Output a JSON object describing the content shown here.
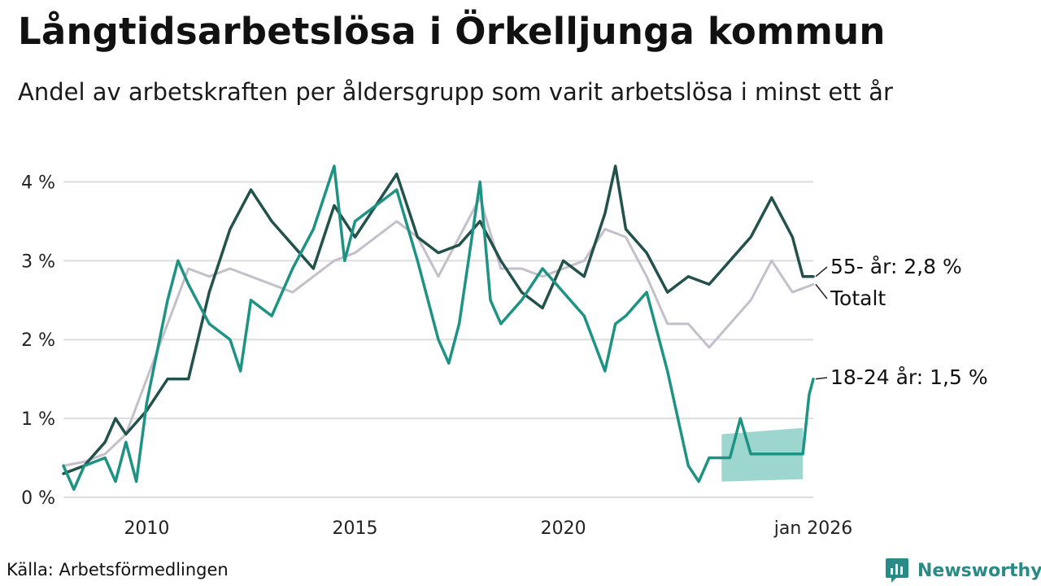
{
  "title": "Långtidsarbetslösa i Örkelljunga kommun",
  "subtitle": "Andel av arbetskraften per åldersgrupp som varit arbetslösa i minst ett år",
  "source": "Källa: Arbetsförmedlingen",
  "brand": "Newsworthy",
  "colors": {
    "total": "#c3bfcb",
    "age55": "#23514b",
    "age18": "#1f9383",
    "band": "#8ccfc5",
    "grid": "#dddddd",
    "brand": "#2a8a85"
  },
  "chart_data": {
    "type": "line",
    "title": "Långtidsarbetslösa i Örkelljunga kommun",
    "xlabel": "",
    "ylabel": "",
    "xlim": [
      2008.0,
      2026.0
    ],
    "ylim": [
      0,
      4.5
    ],
    "yticks": [
      0,
      1,
      2,
      3,
      4
    ],
    "ytick_labels": [
      "0 %",
      "1 %",
      "2 %",
      "3 %",
      "4 %"
    ],
    "xticks": [
      2010,
      2015,
      2020,
      2026
    ],
    "xtick_labels": [
      "2010",
      "2015",
      "2020",
      "jan 2026"
    ],
    "grid": true,
    "series": [
      {
        "name": "Totalt",
        "end_label": "Totalt",
        "x": [
          2008.0,
          2008.5,
          2009.0,
          2009.5,
          2010.0,
          2010.5,
          2011.0,
          2011.5,
          2012.0,
          2012.5,
          2013.0,
          2013.5,
          2014.0,
          2014.5,
          2015.0,
          2015.5,
          2016.0,
          2016.5,
          2017.0,
          2017.5,
          2018.0,
          2018.5,
          2019.0,
          2019.5,
          2020.0,
          2020.5,
          2021.0,
          2021.5,
          2022.0,
          2022.5,
          2023.0,
          2023.5,
          2024.0,
          2024.5,
          2025.0,
          2025.5,
          2026.0
        ],
        "values": [
          0.4,
          0.45,
          0.55,
          0.8,
          1.5,
          2.2,
          2.9,
          2.8,
          2.9,
          2.8,
          2.7,
          2.6,
          2.8,
          3.0,
          3.1,
          3.3,
          3.5,
          3.3,
          2.8,
          3.3,
          3.8,
          2.9,
          2.9,
          2.8,
          2.9,
          3.0,
          3.4,
          3.3,
          2.8,
          2.2,
          2.2,
          1.9,
          2.2,
          2.5,
          3.0,
          2.6,
          2.7
        ]
      },
      {
        "name": "55- år",
        "end_label": "55- år: 2,8 %",
        "x": [
          2008.0,
          2008.5,
          2009.0,
          2009.25,
          2009.5,
          2010.0,
          2010.5,
          2011.0,
          2011.5,
          2012.0,
          2012.5,
          2013.0,
          2013.5,
          2014.0,
          2014.5,
          2015.0,
          2015.5,
          2016.0,
          2016.5,
          2017.0,
          2017.5,
          2018.0,
          2018.5,
          2019.0,
          2019.5,
          2020.0,
          2020.5,
          2021.0,
          2021.25,
          2021.5,
          2022.0,
          2022.5,
          2023.0,
          2023.5,
          2024.0,
          2024.5,
          2025.0,
          2025.5,
          2025.75,
          2026.0
        ],
        "values": [
          0.3,
          0.4,
          0.7,
          1.0,
          0.8,
          1.1,
          1.5,
          1.5,
          2.6,
          3.4,
          3.9,
          3.5,
          3.2,
          2.9,
          3.7,
          3.3,
          3.7,
          4.1,
          3.3,
          3.1,
          3.2,
          3.5,
          3.0,
          2.6,
          2.4,
          3.0,
          2.8,
          3.6,
          4.2,
          3.4,
          3.1,
          2.6,
          2.8,
          2.7,
          3.0,
          3.3,
          3.8,
          3.3,
          2.8,
          2.8
        ]
      },
      {
        "name": "18-24 år",
        "end_label": "18-24 år: 1,5 %",
        "x": [
          2008.0,
          2008.25,
          2008.5,
          2009.0,
          2009.25,
          2009.5,
          2009.75,
          2010.0,
          2010.5,
          2010.75,
          2011.0,
          2011.5,
          2012.0,
          2012.25,
          2012.5,
          2013.0,
          2013.5,
          2014.0,
          2014.5,
          2014.75,
          2015.0,
          2015.5,
          2016.0,
          2016.5,
          2017.0,
          2017.25,
          2017.5,
          2018.0,
          2018.25,
          2018.5,
          2019.0,
          2019.5,
          2020.0,
          2020.5,
          2021.0,
          2021.25,
          2021.5,
          2022.0,
          2022.5,
          2023.0,
          2023.25,
          2023.5,
          2024.0,
          2024.25,
          2024.5,
          2025.0,
          2025.5,
          2025.75,
          2025.9,
          2026.0
        ],
        "values": [
          0.4,
          0.1,
          0.4,
          0.5,
          0.2,
          0.7,
          0.2,
          1.2,
          2.5,
          3.0,
          2.7,
          2.2,
          2.0,
          1.6,
          2.5,
          2.3,
          2.9,
          3.4,
          4.2,
          3.0,
          3.5,
          3.7,
          3.9,
          3.0,
          2.0,
          1.7,
          2.2,
          4.0,
          2.5,
          2.2,
          2.5,
          2.9,
          2.6,
          2.3,
          1.6,
          2.2,
          2.3,
          2.6,
          1.6,
          0.4,
          0.2,
          0.5,
          0.5,
          1.0,
          0.55,
          0.55,
          0.55,
          0.55,
          1.3,
          1.5
        ]
      }
    ],
    "uncertainty_band": {
      "series": "18-24 år",
      "x": [
        2023.8,
        2025.75
      ],
      "lower": [
        0.2,
        0.23
      ],
      "upper": [
        0.8,
        0.88
      ]
    }
  }
}
